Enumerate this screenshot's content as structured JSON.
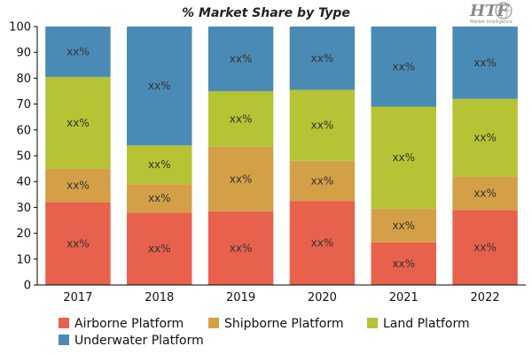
{
  "brand": {
    "logo_text": "HTF",
    "logo_sub": "Market Intelligence"
  },
  "chart_data": {
    "type": "bar",
    "stacked": true,
    "title": "% Market Share by Type",
    "xlabel": "",
    "ylabel": "",
    "categories": [
      "2017",
      "2018",
      "2019",
      "2020",
      "2021",
      "2022"
    ],
    "ylim": [
      0,
      100
    ],
    "yticks": [
      0,
      10,
      20,
      30,
      40,
      50,
      60,
      70,
      80,
      90,
      100
    ],
    "grid": false,
    "legend_position": "bottom",
    "segment_label": "xx%",
    "series": [
      {
        "name": "Airborne Platform",
        "color": "#E8614C",
        "values": [
          32,
          28,
          28.5,
          32.5,
          16.5,
          29
        ]
      },
      {
        "name": "Shipborne Platform",
        "color": "#D4A047",
        "values": [
          13,
          11,
          25,
          15.5,
          13,
          13
        ]
      },
      {
        "name": "Land Platform",
        "color": "#B5C334",
        "values": [
          35.5,
          15,
          21.5,
          27.5,
          39.5,
          30
        ]
      },
      {
        "name": "Underwater Platform",
        "color": "#4A8BB5",
        "values": [
          19.5,
          46,
          25,
          24.5,
          31,
          28
        ]
      }
    ]
  }
}
